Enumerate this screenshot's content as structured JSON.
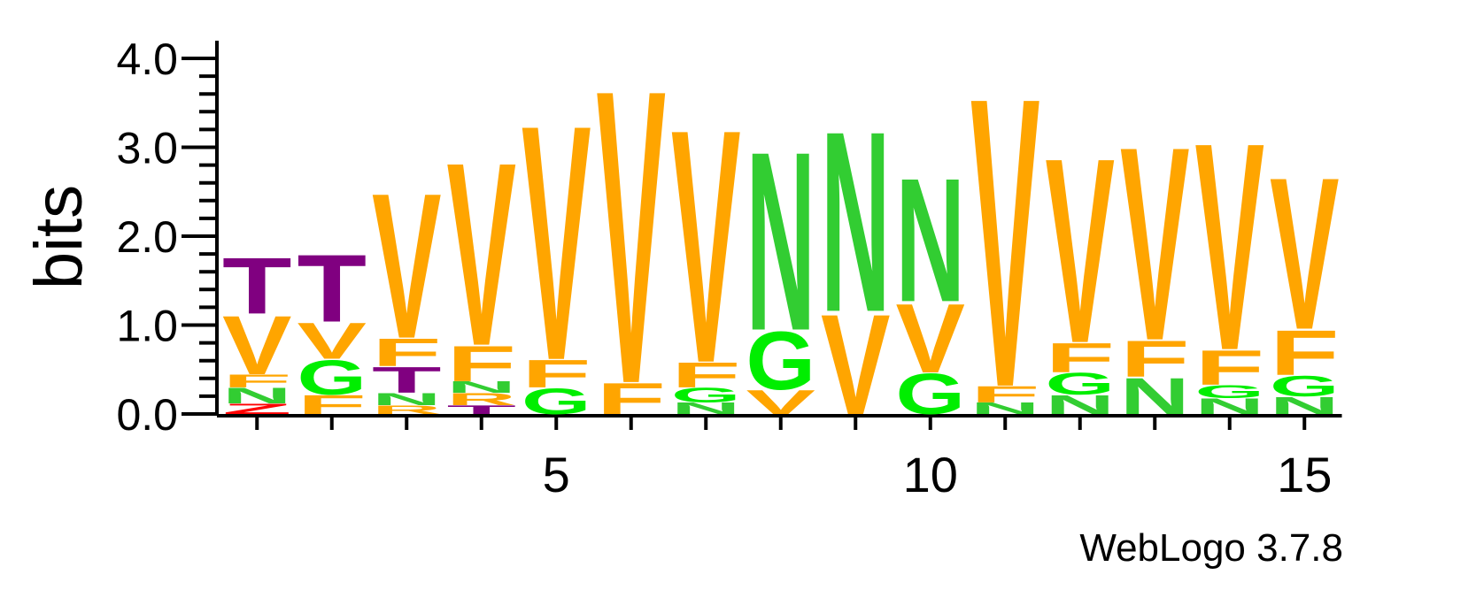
{
  "footer": "WebLogo 3.7.8",
  "chart_data": {
    "type": "sequence-logo",
    "ylabel": "bits",
    "ylim": [
      0,
      4
    ],
    "yticks": [
      "0.0",
      "1.0",
      "2.0",
      "3.0",
      "4.0"
    ],
    "xticks": [
      5,
      10,
      15
    ],
    "colors": {
      "V": "#ffa500",
      "F": "#ffa500",
      "N": "#32cd32",
      "G": "#00ee00",
      "T": "#800080",
      "R": "#ffa500",
      "Z": "#ff0000"
    },
    "positions": [
      {
        "pos": 1,
        "letters": [
          {
            "aa": "Z",
            "h": 0.12
          },
          {
            "aa": "N",
            "h": 0.18
          },
          {
            "aa": "F",
            "h": 0.15
          },
          {
            "aa": "V",
            "h": 0.68
          },
          {
            "aa": "T",
            "h": 0.65
          }
        ]
      },
      {
        "pos": 2,
        "letters": [
          {
            "aa": "F",
            "h": 0.22
          },
          {
            "aa": "G",
            "h": 0.4
          },
          {
            "aa": "V",
            "h": 0.42
          },
          {
            "aa": "T",
            "h": 0.78
          }
        ]
      },
      {
        "pos": 3,
        "letters": [
          {
            "aa": "R",
            "h": 0.1
          },
          {
            "aa": "N",
            "h": 0.14
          },
          {
            "aa": "T",
            "h": 0.3
          },
          {
            "aa": "F",
            "h": 0.32
          },
          {
            "aa": "V",
            "h": 1.68
          }
        ]
      },
      {
        "pos": 4,
        "letters": [
          {
            "aa": "T",
            "h": 0.1
          },
          {
            "aa": "R",
            "h": 0.14
          },
          {
            "aa": "N",
            "h": 0.13
          },
          {
            "aa": "F",
            "h": 0.41
          },
          {
            "aa": "V",
            "h": 2.12
          }
        ]
      },
      {
        "pos": 5,
        "letters": [
          {
            "aa": "G",
            "h": 0.3
          },
          {
            "aa": "F",
            "h": 0.32
          },
          {
            "aa": "V",
            "h": 2.72
          }
        ]
      },
      {
        "pos": 6,
        "letters": [
          {
            "aa": "F",
            "h": 0.36
          },
          {
            "aa": "V",
            "h": 3.4
          }
        ]
      },
      {
        "pos": 7,
        "letters": [
          {
            "aa": "N",
            "h": 0.13
          },
          {
            "aa": "G",
            "h": 0.17
          },
          {
            "aa": "F",
            "h": 0.29
          },
          {
            "aa": "V",
            "h": 2.7
          }
        ]
      },
      {
        "pos": 8,
        "letters": [
          {
            "aa": "V",
            "h": 0.28
          },
          {
            "aa": "G",
            "h": 0.67
          },
          {
            "aa": "N",
            "h": 2.07
          }
        ]
      },
      {
        "pos": 9,
        "letters": [
          {
            "aa": "V",
            "h": 1.16
          },
          {
            "aa": "N",
            "h": 2.09
          }
        ]
      },
      {
        "pos": 10,
        "letters": [
          {
            "aa": "G",
            "h": 0.47
          },
          {
            "aa": "V",
            "h": 0.8
          },
          {
            "aa": "N",
            "h": 1.43
          }
        ]
      },
      {
        "pos": 11,
        "letters": [
          {
            "aa": "N",
            "h": 0.13
          },
          {
            "aa": "F",
            "h": 0.19
          },
          {
            "aa": "V",
            "h": 3.35
          }
        ]
      },
      {
        "pos": 12,
        "letters": [
          {
            "aa": "N",
            "h": 0.22
          },
          {
            "aa": "G",
            "h": 0.25
          },
          {
            "aa": "F",
            "h": 0.34
          },
          {
            "aa": "V",
            "h": 2.14
          }
        ]
      },
      {
        "pos": 13,
        "letters": [
          {
            "aa": "N",
            "h": 0.42
          },
          {
            "aa": "F",
            "h": 0.42
          },
          {
            "aa": "V",
            "h": 2.24
          }
        ]
      },
      {
        "pos": 14,
        "letters": [
          {
            "aa": "N",
            "h": 0.18
          },
          {
            "aa": "G",
            "h": 0.15
          },
          {
            "aa": "F",
            "h": 0.4
          },
          {
            "aa": "V",
            "h": 2.4
          }
        ]
      },
      {
        "pos": 15,
        "letters": [
          {
            "aa": "N",
            "h": 0.2
          },
          {
            "aa": "G",
            "h": 0.24
          },
          {
            "aa": "F",
            "h": 0.52
          },
          {
            "aa": "V",
            "h": 1.76
          }
        ]
      }
    ]
  }
}
